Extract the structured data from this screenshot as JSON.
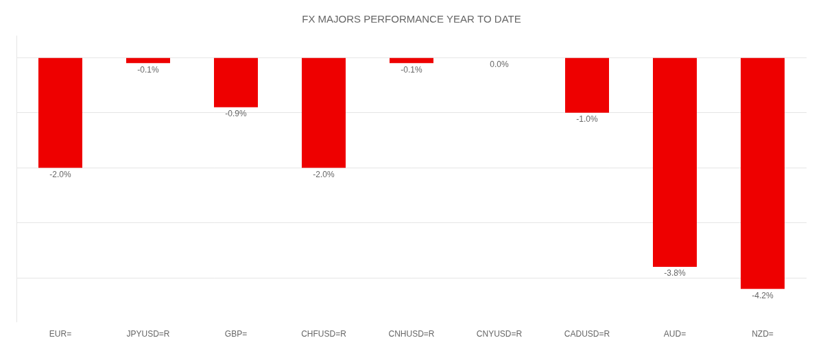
{
  "chart_data": {
    "type": "bar",
    "title": "FX MAJORS PERFORMANCE YEAR TO DATE",
    "categories": [
      "EUR=",
      "JPYUSD=R",
      "GBP=",
      "CHFUSD=R",
      "CNHUSD=R",
      "CNYUSD=R",
      "CADUSD=R",
      "AUD=",
      "NZD="
    ],
    "values": [
      -2.0,
      -0.1,
      -0.9,
      -2.0,
      -0.1,
      0.0,
      -1.0,
      -3.8,
      -4.2
    ],
    "value_labels": [
      "-2.0%",
      "-0.1%",
      "-0.9%",
      "-2.0%",
      "-0.1%",
      "0.0%",
      "-1.0%",
      "-3.8%",
      "-4.2%"
    ],
    "data_labels": true,
    "color": "#ee0000",
    "ylim": [
      -4.8,
      0.4
    ],
    "yticks": [
      -4,
      -3,
      -2,
      -1,
      0
    ],
    "grid": true,
    "tick_labels": "x"
  }
}
